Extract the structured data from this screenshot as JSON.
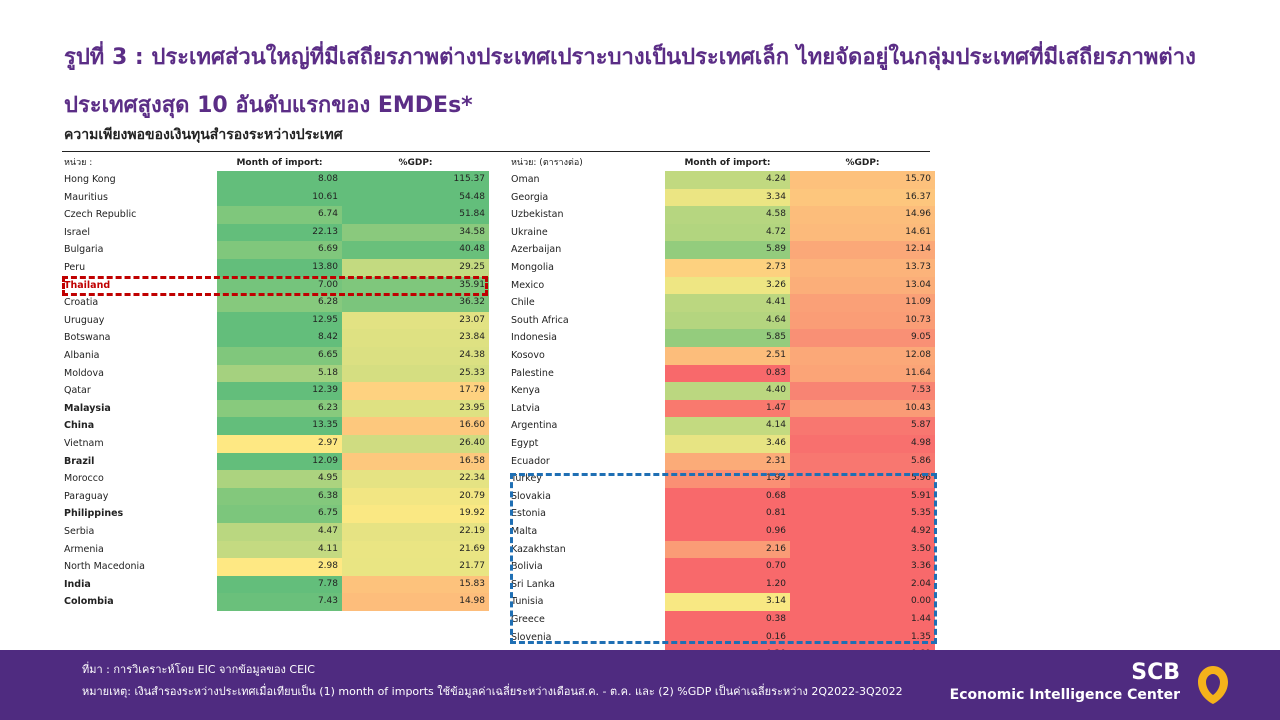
{
  "title": "รูปที่ 3 : ประเทศส่วนใหญ่ที่มีเสถียรภาพต่างประเทศเปราะบางเป็นประเทศเล็ก ไทยจัดอยู่ในกลุ่มประเทศที่มีเสถียรภาพต่างประเทศสูงสุด 10 อันดับแรกของ EMDEs*",
  "subtitle": "ความเพียงพอของเงินทุนสำรองระหว่างประเทศ",
  "left_table": {
    "unit_label": "หน่วย :",
    "col1": "Month of import:",
    "col2": "%GDP:",
    "rows": [
      {
        "name": "Hong Kong",
        "m": "8.08",
        "g": "115.37",
        "mc": "#63be7b",
        "gc": "#63be7b",
        "style": ""
      },
      {
        "name": "Mauritius",
        "m": "10.61",
        "g": "54.48",
        "mc": "#63be7b",
        "gc": "#63be7b",
        "style": ""
      },
      {
        "name": "Czech Republic",
        "m": "6.74",
        "g": "51.84",
        "mc": "#7fc77c",
        "gc": "#63be7b",
        "style": ""
      },
      {
        "name": "Israel",
        "m": "22.13",
        "g": "34.58",
        "mc": "#63be7b",
        "gc": "#8ac97d",
        "style": ""
      },
      {
        "name": "Bulgaria",
        "m": "6.69",
        "g": "40.48",
        "mc": "#80c77c",
        "gc": "#69c07b",
        "style": ""
      },
      {
        "name": "Peru",
        "m": "13.80",
        "g": "29.25",
        "mc": "#63be7b",
        "gc": "#c3da80",
        "style": ""
      },
      {
        "name": "Thailand",
        "m": "7.00",
        "g": "35.91",
        "mc": "#75c47c",
        "gc": "#7fc77c",
        "style": "red"
      },
      {
        "name": "Croatia",
        "m": "6.28",
        "g": "36.32",
        "mc": "#86c97d",
        "gc": "#7bc57c",
        "style": ""
      },
      {
        "name": "Uruguay",
        "m": "12.95",
        "g": "23.07",
        "mc": "#63be7b",
        "gc": "#e2e283",
        "style": ""
      },
      {
        "name": "Botswana",
        "m": "8.42",
        "g": "23.84",
        "mc": "#63be7b",
        "gc": "#dee182",
        "style": ""
      },
      {
        "name": "Albania",
        "m": "6.65",
        "g": "24.38",
        "mc": "#80c77c",
        "gc": "#dbe082",
        "style": ""
      },
      {
        "name": "Moldova",
        "m": "5.18",
        "g": "25.33",
        "mc": "#a5d17f",
        "gc": "#d5de81",
        "style": ""
      },
      {
        "name": "Qatar",
        "m": "12.39",
        "g": "17.79",
        "mc": "#63be7b",
        "gc": "#fed280",
        "style": ""
      },
      {
        "name": "Malaysia",
        "m": "6.23",
        "g": "23.95",
        "mc": "#88ca7d",
        "gc": "#dee182",
        "style": "bold"
      },
      {
        "name": "China",
        "m": "13.35",
        "g": "16.60",
        "mc": "#63be7b",
        "gc": "#fdc87d",
        "style": "bold"
      },
      {
        "name": "Vietnam",
        "m": "2.97",
        "g": "26.40",
        "mc": "#fee883",
        "gc": "#cfdc81",
        "style": ""
      },
      {
        "name": "Brazil",
        "m": "12.09",
        "g": "16.58",
        "mc": "#63be7b",
        "gc": "#fdc87d",
        "style": "bold"
      },
      {
        "name": "Morocco",
        "m": "4.95",
        "g": "22.34",
        "mc": "#acd37f",
        "gc": "#e5e383",
        "style": ""
      },
      {
        "name": "Paraguay",
        "m": "6.38",
        "g": "20.79",
        "mc": "#83c87c",
        "gc": "#f2e683",
        "style": ""
      },
      {
        "name": "Philippines",
        "m": "6.75",
        "g": "19.92",
        "mc": "#7cc67c",
        "gc": "#fae883",
        "style": "bold"
      },
      {
        "name": "Serbia",
        "m": "4.47",
        "g": "22.19",
        "mc": "#bad780",
        "gc": "#e6e383",
        "style": ""
      },
      {
        "name": "Armenia",
        "m": "4.11",
        "g": "21.69",
        "mc": "#c4da81",
        "gc": "#eae583",
        "style": ""
      },
      {
        "name": "North Macedonia",
        "m": "2.98",
        "g": "21.77",
        "mc": "#fee883",
        "gc": "#e9e583",
        "style": ""
      },
      {
        "name": "India",
        "m": "7.78",
        "g": "15.83",
        "mc": "#63be7b",
        "gc": "#fdc27c",
        "style": "bold"
      },
      {
        "name": "Colombia",
        "m": "7.43",
        "g": "14.98",
        "mc": "#6ac07b",
        "gc": "#fdbd7b",
        "style": "bold"
      }
    ]
  },
  "right_table": {
    "unit_label": "หน่วย: (ตารางต่อ)",
    "col1": "Month of import:",
    "col2": "%GDP:",
    "rows": [
      {
        "name": "Oman",
        "m": "4.24",
        "g": "15.70",
        "mc": "#c1d980",
        "gc": "#fdc17c"
      },
      {
        "name": "Georgia",
        "m": "3.34",
        "g": "16.37",
        "mc": "#ebe583",
        "gc": "#fdc67d"
      },
      {
        "name": "Uzbekistan",
        "m": "4.58",
        "g": "14.96",
        "mc": "#b6d680",
        "gc": "#fcbd7b"
      },
      {
        "name": "Ukraine",
        "m": "4.72",
        "g": "14.61",
        "mc": "#b2d57f",
        "gc": "#fcba7b"
      },
      {
        "name": "Azerbaijan",
        "m": "5.89",
        "g": "12.14",
        "mc": "#93cc7d",
        "gc": "#fba878"
      },
      {
        "name": "Mongolia",
        "m": "2.73",
        "g": "13.73",
        "mc": "#fdd17f",
        "gc": "#fcb37a"
      },
      {
        "name": "Mexico",
        "m": "3.26",
        "g": "13.04",
        "mc": "#eee683",
        "gc": "#fbae79"
      },
      {
        "name": "Chile",
        "m": "4.41",
        "g": "11.09",
        "mc": "#bbd780",
        "gc": "#faa077"
      },
      {
        "name": "South Africa",
        "m": "4.64",
        "g": "10.73",
        "mc": "#b4d57f",
        "gc": "#fa9d76"
      },
      {
        "name": "Indonesia",
        "m": "5.85",
        "g": "9.05",
        "mc": "#94cc7d",
        "gc": "#f99075"
      },
      {
        "name": "Kosovo",
        "m": "2.51",
        "g": "12.08",
        "mc": "#fcbd7b",
        "gc": "#fba878"
      },
      {
        "name": "Palestine",
        "m": "0.83",
        "g": "11.64",
        "mc": "#f8696b",
        "gc": "#fba477"
      },
      {
        "name": "Kenya",
        "m": "4.40",
        "g": "7.53",
        "mc": "#bbd780",
        "gc": "#f88473"
      },
      {
        "name": "Latvia",
        "m": "1.47",
        "g": "10.43",
        "mc": "#f9796e",
        "gc": "#fa9b76"
      },
      {
        "name": "Argentina",
        "m": "4.14",
        "g": "5.87",
        "mc": "#c3da80",
        "gc": "#f87770"
      },
      {
        "name": "Egypt",
        "m": "3.46",
        "g": "4.98",
        "mc": "#e7e483",
        "gc": "#f8706e"
      },
      {
        "name": "Ecuador",
        "m": "2.31",
        "g": "5.86",
        "mc": "#fbab78",
        "gc": "#f87770"
      },
      {
        "name": "Turkey",
        "m": "1.92",
        "g": "5.96",
        "mc": "#fa9074",
        "gc": "#f87770"
      },
      {
        "name": "Slovakia",
        "m": "0.68",
        "g": "5.91",
        "mc": "#f8696b",
        "gc": "#f8696b"
      },
      {
        "name": "Estonia",
        "m": "0.81",
        "g": "5.35",
        "mc": "#f8696b",
        "gc": "#f8696b"
      },
      {
        "name": "Malta",
        "m": "0.96",
        "g": "4.92",
        "mc": "#f8696b",
        "gc": "#f8696b"
      },
      {
        "name": "Kazakhstan",
        "m": "2.16",
        "g": "3.50",
        "mc": "#fa9c76",
        "gc": "#f8696b"
      },
      {
        "name": "Bolivia",
        "m": "0.70",
        "g": "3.36",
        "mc": "#f8696b",
        "gc": "#f8696b"
      },
      {
        "name": "Sri Lanka",
        "m": "1.20",
        "g": "2.04",
        "mc": "#f8696b",
        "gc": "#f8696b"
      },
      {
        "name": "Tunisia",
        "m": "3.14",
        "g": "0.00",
        "mc": "#f8e883",
        "gc": "#f8696b"
      },
      {
        "name": "Greece",
        "m": "0.38",
        "g": "1.44",
        "mc": "#f8696b",
        "gc": "#f8696b"
      },
      {
        "name": "Slovenia",
        "m": "0.16",
        "g": "1.35",
        "mc": "#f8696b",
        "gc": "#f8696b"
      },
      {
        "name": "Cyprus",
        "m": "0.20",
        "g": "0.69",
        "mc": "#f8696b",
        "gc": "#f8696b"
      }
    ]
  },
  "highlight_colors": {
    "thailand_box": "#c00000",
    "bottom_box": "#1f6fb4"
  },
  "footer": {
    "source": "ที่มา : การวิเคราะห์โดย EIC จากข้อมูลของ CEIC",
    "note": "หมายเหตุ: เงินสำรองระหว่างประเทศเมื่อเทียบเป็น (1) month of imports ใช้ข้อมูลค่าเฉลี่ยระหว่างเดือนส.ค. - ต.ค. และ (2) %GDP เป็นค่าเฉลี่ยระหว่าง 2Q2022-3Q2022",
    "logo_scb": "SCB",
    "logo_eic": "Economic Intelligence Center",
    "logo_color": "#f5b21b",
    "bg_color": "#4f2b80"
  }
}
